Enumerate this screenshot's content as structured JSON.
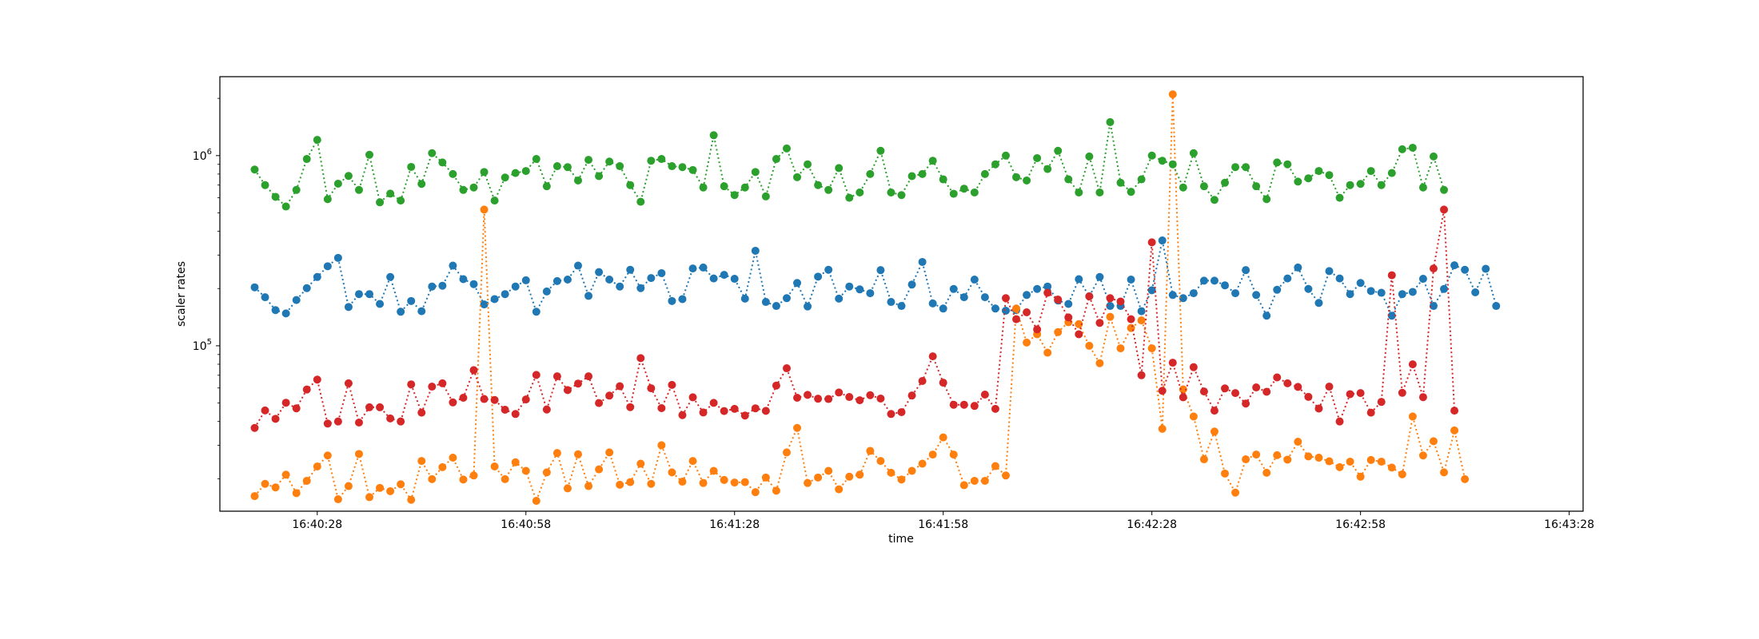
{
  "chart_data": {
    "type": "line",
    "title": "",
    "xlabel": "time",
    "ylabel": "scaler rates",
    "xscale": "time",
    "yscale": "log",
    "grid": false,
    "legend": "none",
    "line_style": "dotted",
    "marker": "circle",
    "x_start": "16:40:19",
    "x_end": "16:43:24",
    "x_step_seconds": 1.5,
    "xlim": [
      "16:40:14",
      "16:43:30"
    ],
    "ylim": [
      13500,
      2600000
    ],
    "x_ticks": [
      {
        "value": "16:40:28",
        "label": "16:40:28"
      },
      {
        "value": "16:40:58",
        "label": "16:40:58"
      },
      {
        "value": "16:41:28",
        "label": "16:41:28"
      },
      {
        "value": "16:41:58",
        "label": "16:41:58"
      },
      {
        "value": "16:42:28",
        "label": "16:42:28"
      },
      {
        "value": "16:42:58",
        "label": "16:42:58"
      },
      {
        "value": "16:43:28",
        "label": "16:43:28"
      }
    ],
    "y_ticks": [
      {
        "value": 100000,
        "label_base": "10",
        "label_exp": "5"
      },
      {
        "value": 1000000,
        "label_base": "10",
        "label_exp": "6"
      }
    ],
    "series": [
      {
        "color": "#1f77b4",
        "values": [
          203000,
          180000,
          154000,
          148000,
          174000,
          201000,
          230000,
          262000,
          290000,
          160000,
          187000,
          187000,
          166000,
          230000,
          151000,
          172000,
          152000,
          205000,
          207000,
          264000,
          224000,
          211000,
          165000,
          176000,
          187000,
          205000,
          221000,
          151000,
          193000,
          219000,
          223000,
          264000,
          183000,
          244000,
          223000,
          205000,
          251000,
          201000,
          227000,
          241000,
          172000,
          176000,
          255000,
          258000,
          226000,
          236000,
          225000,
          177000,
          316000,
          170000,
          162000,
          178000,
          214000,
          161000,
          231000,
          251000,
          177000,
          205000,
          198000,
          189000,
          250000,
          170000,
          162000,
          210000,
          276000,
          167000,
          157000,
          199000,
          180000,
          223000,
          180000,
          157000,
          153000,
          154000,
          185000,
          199000,
          205000,
          173000,
          166000,
          224000,
          182000,
          230000,
          162000,
          162000,
          223000,
          152000,
          196000,
          358000,
          185000,
          178000,
          189000,
          220000,
          220000,
          208000,
          189000,
          250000,
          185000,
          144000,
          197000,
          226000,
          258000,
          199000,
          168000,
          247000,
          226000,
          187000,
          214000,
          194000,
          190000,
          144000,
          187000,
          192000,
          225000,
          162000,
          199000,
          265000,
          251000,
          191000,
          254000,
          162000
        ]
      },
      {
        "color": "#ff7f0e",
        "values": [
          16200,
          18800,
          18000,
          21000,
          16800,
          19500,
          23200,
          26500,
          15600,
          18300,
          27000,
          16000,
          17900,
          17200,
          18700,
          15500,
          24800,
          19900,
          23000,
          25800,
          19800,
          20800,
          520000,
          23200,
          19900,
          24400,
          22000,
          15300,
          21600,
          27300,
          17800,
          26900,
          18300,
          22400,
          27500,
          18600,
          19200,
          24000,
          18800,
          30000,
          21600,
          19300,
          24800,
          19000,
          22000,
          19700,
          19100,
          19200,
          17000,
          20300,
          17300,
          27500,
          37000,
          19000,
          20300,
          22000,
          17600,
          20500,
          21000,
          28000,
          24800,
          21500,
          19800,
          22000,
          24000,
          26800,
          33000,
          26800,
          18500,
          19500,
          19500,
          23300,
          20800,
          157000,
          104000,
          115000,
          92000,
          118000,
          133000,
          130000,
          100000,
          81000,
          142000,
          97000,
          124000,
          136000,
          97000,
          36600,
          2100000,
          59000,
          42500,
          25300,
          35400,
          21300,
          16900,
          25300,
          26800,
          21500,
          26600,
          25200,
          31300,
          26200,
          25800,
          24700,
          23000,
          24600,
          20500,
          25100,
          24600,
          22900,
          21100,
          42500,
          26500,
          31500,
          21600,
          35900,
          19900
        ]
      },
      {
        "color": "#2ca02c",
        "values": [
          845000,
          700000,
          607000,
          540000,
          660000,
          960000,
          1210000,
          590000,
          712000,
          782000,
          660000,
          1010000,
          568000,
          631000,
          580000,
          872000,
          710000,
          1030000,
          920000,
          800000,
          660000,
          680000,
          820000,
          580000,
          767000,
          810000,
          830000,
          960000,
          690000,
          880000,
          870000,
          740000,
          950000,
          780000,
          930000,
          880000,
          700000,
          572000,
          940000,
          960000,
          880000,
          870000,
          840000,
          680000,
          1280000,
          690000,
          620000,
          680000,
          820000,
          610000,
          960000,
          1090000,
          770000,
          900000,
          700000,
          660000,
          860000,
          600000,
          640000,
          800000,
          1060000,
          640000,
          620000,
          780000,
          800000,
          940000,
          750000,
          630000,
          670000,
          640000,
          800000,
          900000,
          1000000,
          770000,
          740000,
          970000,
          850000,
          1060000,
          750000,
          640000,
          990000,
          640000,
          1500000,
          720000,
          645000,
          750000,
          1000000,
          940000,
          900000,
          680000,
          1030000,
          690000,
          585000,
          720000,
          870000,
          870000,
          690000,
          590000,
          920000,
          900000,
          730000,
          760000,
          830000,
          790000,
          600000,
          700000,
          710000,
          830000,
          700000,
          810000,
          1080000,
          1100000,
          680000,
          990000,
          660000
        ]
      },
      {
        "color": "#d62728",
        "values": [
          37000,
          45700,
          41300,
          50200,
          46900,
          58900,
          66400,
          39000,
          40000,
          63500,
          39500,
          47500,
          47500,
          41500,
          40000,
          62700,
          44500,
          61000,
          63500,
          50400,
          53300,
          74500,
          52500,
          51900,
          46100,
          43800,
          52200,
          70300,
          46200,
          69100,
          58500,
          63300,
          69100,
          50000,
          54700,
          61300,
          47600,
          86100,
          59800,
          47000,
          62300,
          43200,
          53600,
          44600,
          50100,
          45400,
          46600,
          43000,
          46900,
          45500,
          61800,
          76200,
          53300,
          55200,
          52700,
          52500,
          56800,
          53800,
          51700,
          55000,
          52800,
          43800,
          44800,
          54800,
          65300,
          88000,
          64000,
          49000,
          49000,
          48300,
          55400,
          46600,
          178000,
          138000,
          150000,
          122000,
          190000,
          175000,
          141000,
          115000,
          182000,
          132000,
          178000,
          171000,
          138000,
          70000,
          350000,
          58000,
          81500,
          53600,
          77200,
          57500,
          45600,
          59700,
          56400,
          49700,
          60400,
          57300,
          68200,
          63500,
          60800,
          53900,
          46800,
          61000,
          40000,
          55700,
          56400,
          44500,
          50700,
          235000,
          56600,
          79900,
          53700,
          255000,
          520000,
          45600
        ]
      }
    ]
  }
}
